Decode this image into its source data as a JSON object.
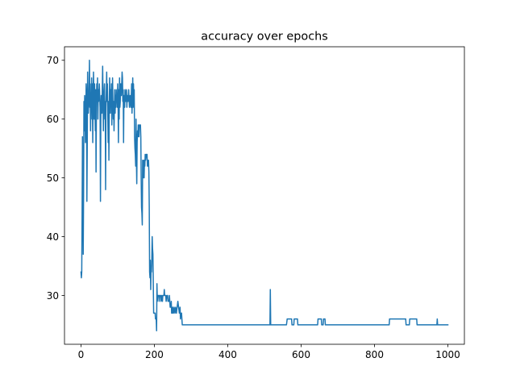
{
  "chart_data": {
    "type": "line",
    "title": "accuracy over epochs",
    "xlabel": "",
    "ylabel": "",
    "xlim": [
      -45,
      1045
    ],
    "ylim": [
      21.7,
      72.3
    ],
    "x_ticks": [
      0,
      200,
      400,
      600,
      800,
      1000
    ],
    "y_ticks": [
      30,
      40,
      50,
      60,
      70
    ],
    "grid": false,
    "legend": "none",
    "line_color": "#1f77b4",
    "series": [
      {
        "points": [
          [
            0,
            34
          ],
          [
            1,
            33
          ],
          [
            2,
            34
          ],
          [
            3,
            44
          ],
          [
            4,
            57
          ],
          [
            5,
            50
          ],
          [
            6,
            37
          ],
          [
            7,
            47
          ],
          [
            8,
            63
          ],
          [
            9,
            58
          ],
          [
            10,
            64
          ],
          [
            11,
            62
          ],
          [
            12,
            56
          ],
          [
            13,
            60
          ],
          [
            14,
            66
          ],
          [
            15,
            64
          ],
          [
            16,
            46
          ],
          [
            17,
            55
          ],
          [
            18,
            68
          ],
          [
            19,
            63
          ],
          [
            20,
            61
          ],
          [
            22,
            65
          ],
          [
            23,
            70
          ],
          [
            24,
            62
          ],
          [
            25,
            66
          ],
          [
            26,
            58
          ],
          [
            27,
            64
          ],
          [
            28,
            62
          ],
          [
            29,
            67
          ],
          [
            30,
            60
          ],
          [
            31,
            66
          ],
          [
            32,
            56
          ],
          [
            33,
            63
          ],
          [
            34,
            68
          ],
          [
            35,
            64
          ],
          [
            36,
            60
          ],
          [
            37,
            66
          ],
          [
            38,
            62
          ],
          [
            39,
            58
          ],
          [
            40,
            65
          ],
          [
            41,
            51
          ],
          [
            42,
            62
          ],
          [
            43,
            66
          ],
          [
            44,
            63
          ],
          [
            45,
            67
          ],
          [
            46,
            60
          ],
          [
            47,
            65
          ],
          [
            48,
            63
          ],
          [
            50,
            66
          ],
          [
            52,
            62
          ],
          [
            53,
            46
          ],
          [
            54,
            60
          ],
          [
            55,
            64
          ],
          [
            57,
            61
          ],
          [
            58,
            65
          ],
          [
            59,
            69
          ],
          [
            60,
            64
          ],
          [
            61,
            58
          ],
          [
            62,
            63
          ],
          [
            64,
            66
          ],
          [
            65,
            60
          ],
          [
            66,
            63
          ],
          [
            67,
            48
          ],
          [
            68,
            62
          ],
          [
            69,
            65
          ],
          [
            70,
            68
          ],
          [
            71,
            63
          ],
          [
            72,
            66
          ],
          [
            73,
            61
          ],
          [
            74,
            56
          ],
          [
            75,
            63
          ],
          [
            76,
            53
          ],
          [
            77,
            62
          ],
          [
            78,
            67
          ],
          [
            79,
            63
          ],
          [
            80,
            61
          ],
          [
            81,
            65
          ],
          [
            82,
            63
          ],
          [
            83,
            66
          ],
          [
            84,
            59
          ],
          [
            85,
            64
          ],
          [
            86,
            67
          ],
          [
            87,
            63
          ],
          [
            88,
            60
          ],
          [
            89,
            63
          ],
          [
            90,
            58
          ],
          [
            91,
            62
          ],
          [
            92,
            65
          ],
          [
            93,
            61
          ],
          [
            94,
            64
          ],
          [
            95,
            62
          ],
          [
            96,
            65
          ],
          [
            97,
            63
          ],
          [
            98,
            64
          ],
          [
            99,
            62
          ],
          [
            100,
            66
          ],
          [
            101,
            63
          ],
          [
            102,
            56
          ],
          [
            103,
            65
          ],
          [
            104,
            60
          ],
          [
            105,
            67
          ],
          [
            106,
            62
          ],
          [
            107,
            63
          ],
          [
            108,
            66
          ],
          [
            110,
            64
          ],
          [
            112,
            68
          ],
          [
            113,
            67
          ],
          [
            114,
            63
          ],
          [
            115,
            65
          ],
          [
            116,
            56
          ],
          [
            117,
            64
          ],
          [
            119,
            62
          ],
          [
            120,
            65
          ],
          [
            122,
            63
          ],
          [
            124,
            65
          ],
          [
            125,
            62
          ],
          [
            126,
            64
          ],
          [
            128,
            63
          ],
          [
            130,
            65
          ],
          [
            132,
            62
          ],
          [
            134,
            64
          ],
          [
            136,
            62
          ],
          [
            138,
            66
          ],
          [
            139,
            61
          ],
          [
            140,
            64
          ],
          [
            141,
            67
          ],
          [
            142,
            62
          ],
          [
            143,
            66
          ],
          [
            144,
            63
          ],
          [
            145,
            65
          ],
          [
            146,
            57
          ],
          [
            147,
            55
          ],
          [
            148,
            54
          ],
          [
            149,
            52
          ],
          [
            150,
            60
          ],
          [
            151,
            53
          ],
          [
            152,
            49
          ],
          [
            153,
            56
          ],
          [
            154,
            58
          ],
          [
            155,
            57
          ],
          [
            156,
            59
          ],
          [
            158,
            57
          ],
          [
            159,
            59
          ],
          [
            162,
            59
          ],
          [
            163,
            57
          ],
          [
            164,
            50
          ],
          [
            165,
            45
          ],
          [
            166,
            44
          ],
          [
            167,
            42
          ],
          [
            168,
            53
          ],
          [
            169,
            50
          ],
          [
            170,
            52
          ],
          [
            171,
            53
          ],
          [
            172,
            50
          ],
          [
            173,
            53
          ],
          [
            174,
            52
          ],
          [
            175,
            54
          ],
          [
            176,
            53
          ],
          [
            178,
            54
          ],
          [
            180,
            54
          ],
          [
            181,
            52
          ],
          [
            182,
            53
          ],
          [
            183,
            52
          ],
          [
            184,
            53
          ],
          [
            185,
            51
          ],
          [
            186,
            45
          ],
          [
            187,
            34
          ],
          [
            188,
            33
          ],
          [
            189,
            36
          ],
          [
            190,
            31
          ],
          [
            191,
            35
          ],
          [
            192,
            34
          ],
          [
            193,
            36
          ],
          [
            194,
            40
          ],
          [
            195,
            38
          ],
          [
            196,
            37
          ],
          [
            198,
            27
          ],
          [
            202,
            27
          ],
          [
            203,
            26
          ],
          [
            205,
            26
          ],
          [
            206,
            24
          ],
          [
            207,
            32
          ],
          [
            208,
            29
          ],
          [
            209,
            30
          ],
          [
            212,
            30
          ],
          [
            213,
            29
          ],
          [
            214,
            30
          ],
          [
            217,
            30
          ],
          [
            218,
            29
          ],
          [
            220,
            30
          ],
          [
            222,
            29
          ],
          [
            223,
            30
          ],
          [
            226,
            30
          ],
          [
            227,
            31
          ],
          [
            228,
            30
          ],
          [
            231,
            30
          ],
          [
            232,
            29
          ],
          [
            234,
            30
          ],
          [
            236,
            30
          ],
          [
            237,
            29
          ],
          [
            240,
            29
          ],
          [
            241,
            30
          ],
          [
            243,
            28
          ],
          [
            245,
            28
          ],
          [
            246,
            29
          ],
          [
            247,
            27
          ],
          [
            249,
            27
          ],
          [
            250,
            28
          ],
          [
            252,
            27
          ],
          [
            254,
            28
          ],
          [
            256,
            27
          ],
          [
            258,
            28
          ],
          [
            260,
            27
          ],
          [
            262,
            28
          ],
          [
            264,
            29
          ],
          [
            266,
            28
          ],
          [
            268,
            27
          ],
          [
            270,
            28
          ],
          [
            271,
            26
          ],
          [
            272,
            27
          ],
          [
            274,
            27
          ],
          [
            275,
            26
          ],
          [
            276,
            25
          ],
          [
            400,
            25
          ],
          [
            515,
            25
          ],
          [
            516,
            31
          ],
          [
            517,
            25
          ],
          [
            560,
            25
          ],
          [
            562,
            26
          ],
          [
            574,
            26
          ],
          [
            575,
            25
          ],
          [
            580,
            25
          ],
          [
            581,
            26
          ],
          [
            590,
            26
          ],
          [
            591,
            25
          ],
          [
            645,
            25
          ],
          [
            646,
            26
          ],
          [
            655,
            26
          ],
          [
            656,
            25
          ],
          [
            660,
            25
          ],
          [
            661,
            26
          ],
          [
            665,
            26
          ],
          [
            666,
            25
          ],
          [
            840,
            25
          ],
          [
            841,
            26
          ],
          [
            885,
            26
          ],
          [
            886,
            25
          ],
          [
            895,
            25
          ],
          [
            896,
            26
          ],
          [
            915,
            26
          ],
          [
            916,
            25
          ],
          [
            970,
            25
          ],
          [
            971,
            26
          ],
          [
            972,
            25
          ],
          [
            1000,
            25
          ]
        ]
      }
    ]
  }
}
